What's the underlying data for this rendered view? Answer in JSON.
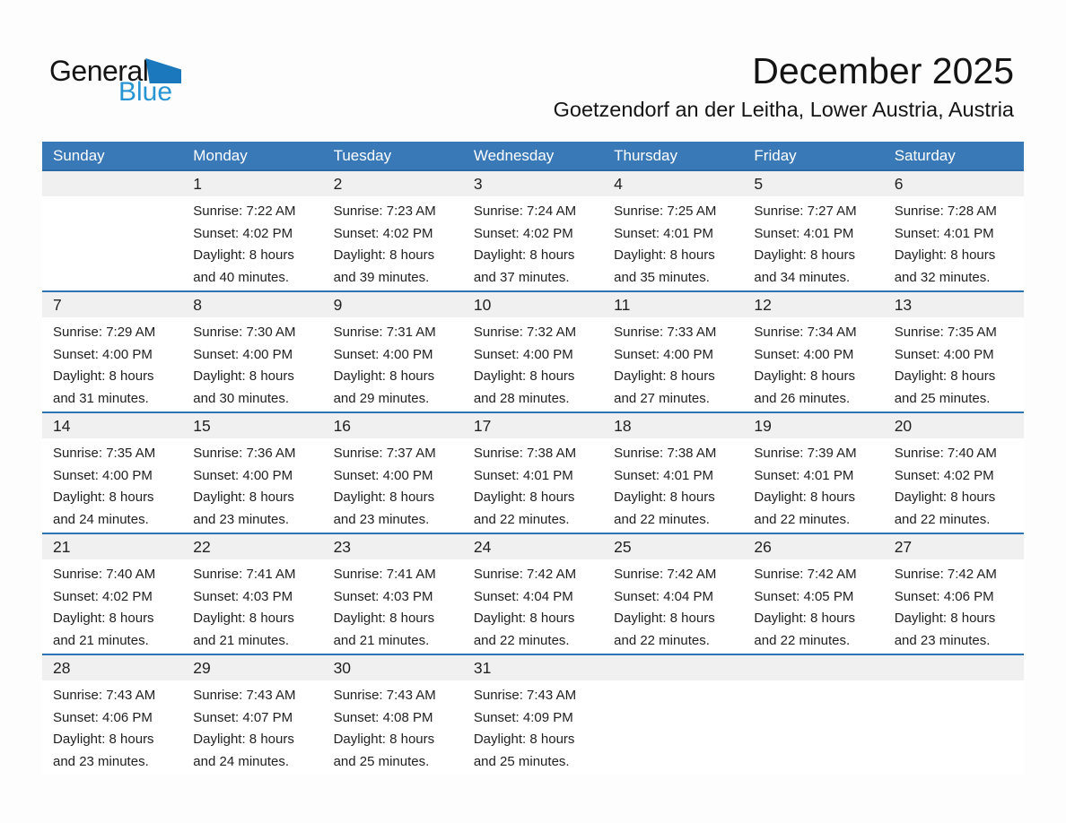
{
  "logo": {
    "general": "General",
    "blue": "Blue"
  },
  "header": {
    "title": "December 2025",
    "subtitle": "Goetzendorf an der Leitha, Lower Austria, Austria"
  },
  "colors": {
    "header_blue": "#3a79b7",
    "week_border_blue": "#2e74b5",
    "day_band_gray": "#f0f0f0",
    "logo_triangle_blue": "#1c78bd",
    "logo_text_blue": "#2795d3",
    "body_text": "#212121"
  },
  "calendar": {
    "weekdays": [
      "Sunday",
      "Monday",
      "Tuesday",
      "Wednesday",
      "Thursday",
      "Friday",
      "Saturday"
    ],
    "labels": {
      "sunrise": "Sunrise:",
      "sunset": "Sunset:",
      "daylight": "Daylight:"
    },
    "weeks": [
      [
        null,
        {
          "day": "1",
          "sunrise": "7:22 AM",
          "sunset": "4:02 PM",
          "daylight": "8 hours and 40 minutes."
        },
        {
          "day": "2",
          "sunrise": "7:23 AM",
          "sunset": "4:02 PM",
          "daylight": "8 hours and 39 minutes."
        },
        {
          "day": "3",
          "sunrise": "7:24 AM",
          "sunset": "4:02 PM",
          "daylight": "8 hours and 37 minutes."
        },
        {
          "day": "4",
          "sunrise": "7:25 AM",
          "sunset": "4:01 PM",
          "daylight": "8 hours and 35 minutes."
        },
        {
          "day": "5",
          "sunrise": "7:27 AM",
          "sunset": "4:01 PM",
          "daylight": "8 hours and 34 minutes."
        },
        {
          "day": "6",
          "sunrise": "7:28 AM",
          "sunset": "4:01 PM",
          "daylight": "8 hours and 32 minutes."
        }
      ],
      [
        {
          "day": "7",
          "sunrise": "7:29 AM",
          "sunset": "4:00 PM",
          "daylight": "8 hours and 31 minutes."
        },
        {
          "day": "8",
          "sunrise": "7:30 AM",
          "sunset": "4:00 PM",
          "daylight": "8 hours and 30 minutes."
        },
        {
          "day": "9",
          "sunrise": "7:31 AM",
          "sunset": "4:00 PM",
          "daylight": "8 hours and 29 minutes."
        },
        {
          "day": "10",
          "sunrise": "7:32 AM",
          "sunset": "4:00 PM",
          "daylight": "8 hours and 28 minutes."
        },
        {
          "day": "11",
          "sunrise": "7:33 AM",
          "sunset": "4:00 PM",
          "daylight": "8 hours and 27 minutes."
        },
        {
          "day": "12",
          "sunrise": "7:34 AM",
          "sunset": "4:00 PM",
          "daylight": "8 hours and 26 minutes."
        },
        {
          "day": "13",
          "sunrise": "7:35 AM",
          "sunset": "4:00 PM",
          "daylight": "8 hours and 25 minutes."
        }
      ],
      [
        {
          "day": "14",
          "sunrise": "7:35 AM",
          "sunset": "4:00 PM",
          "daylight": "8 hours and 24 minutes."
        },
        {
          "day": "15",
          "sunrise": "7:36 AM",
          "sunset": "4:00 PM",
          "daylight": "8 hours and 23 minutes."
        },
        {
          "day": "16",
          "sunrise": "7:37 AM",
          "sunset": "4:00 PM",
          "daylight": "8 hours and 23 minutes."
        },
        {
          "day": "17",
          "sunrise": "7:38 AM",
          "sunset": "4:01 PM",
          "daylight": "8 hours and 22 minutes."
        },
        {
          "day": "18",
          "sunrise": "7:38 AM",
          "sunset": "4:01 PM",
          "daylight": "8 hours and 22 minutes."
        },
        {
          "day": "19",
          "sunrise": "7:39 AM",
          "sunset": "4:01 PM",
          "daylight": "8 hours and 22 minutes."
        },
        {
          "day": "20",
          "sunrise": "7:40 AM",
          "sunset": "4:02 PM",
          "daylight": "8 hours and 22 minutes."
        }
      ],
      [
        {
          "day": "21",
          "sunrise": "7:40 AM",
          "sunset": "4:02 PM",
          "daylight": "8 hours and 21 minutes."
        },
        {
          "day": "22",
          "sunrise": "7:41 AM",
          "sunset": "4:03 PM",
          "daylight": "8 hours and 21 minutes."
        },
        {
          "day": "23",
          "sunrise": "7:41 AM",
          "sunset": "4:03 PM",
          "daylight": "8 hours and 21 minutes."
        },
        {
          "day": "24",
          "sunrise": "7:42 AM",
          "sunset": "4:04 PM",
          "daylight": "8 hours and 22 minutes."
        },
        {
          "day": "25",
          "sunrise": "7:42 AM",
          "sunset": "4:04 PM",
          "daylight": "8 hours and 22 minutes."
        },
        {
          "day": "26",
          "sunrise": "7:42 AM",
          "sunset": "4:05 PM",
          "daylight": "8 hours and 22 minutes."
        },
        {
          "day": "27",
          "sunrise": "7:42 AM",
          "sunset": "4:06 PM",
          "daylight": "8 hours and 23 minutes."
        }
      ],
      [
        {
          "day": "28",
          "sunrise": "7:43 AM",
          "sunset": "4:06 PM",
          "daylight": "8 hours and 23 minutes."
        },
        {
          "day": "29",
          "sunrise": "7:43 AM",
          "sunset": "4:07 PM",
          "daylight": "8 hours and 24 minutes."
        },
        {
          "day": "30",
          "sunrise": "7:43 AM",
          "sunset": "4:08 PM",
          "daylight": "8 hours and 25 minutes."
        },
        {
          "day": "31",
          "sunrise": "7:43 AM",
          "sunset": "4:09 PM",
          "daylight": "8 hours and 25 minutes."
        },
        null,
        null,
        null
      ]
    ]
  }
}
